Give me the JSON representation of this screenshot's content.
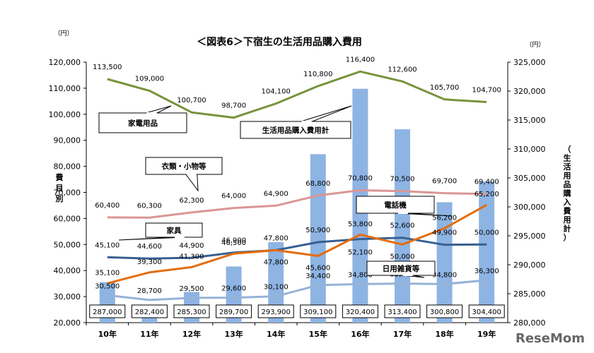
{
  "chart_data": {
    "type": "bar+line",
    "title": "＜図表6＞下宿生の生活用品購入費用",
    "left_unit": "（円）",
    "right_unit": "（円）",
    "left_axis_label": "費目別",
    "right_axis_label": "（生活用品購入費用計）",
    "left_ylim": [
      20000,
      120000
    ],
    "right_ylim": [
      280000,
      325000
    ],
    "left_ticks": [
      "20,000",
      "30,000",
      "40,000",
      "50,000",
      "60,000",
      "70,000",
      "80,000",
      "90,000",
      "100,000",
      "110,000",
      "120,000"
    ],
    "right_ticks": [
      "280,000",
      "285,000",
      "290,000",
      "295,000",
      "300,000",
      "305,000",
      "310,000",
      "315,000",
      "320,000",
      "325,000"
    ],
    "categories": [
      "10年",
      "11年",
      "12年",
      "13年",
      "14年",
      "15年",
      "16年",
      "17年",
      "18年",
      "19年"
    ],
    "bar_series": {
      "values": [
        287000,
        282400,
        285300,
        289700,
        293900,
        309100,
        320400,
        313400,
        300800,
        304400
      ],
      "labels": [
        "287,000",
        "282,400",
        "285,300",
        "289,700",
        "293,900",
        "309,100",
        "320,400",
        "313,400",
        "300,800",
        "304,400"
      ],
      "color": "#8eb4e3",
      "axis": "right"
    },
    "line_series": [
      {
        "key": "kaden",
        "values": [
          113500,
          109000,
          100700,
          98700,
          104100,
          110800,
          116400,
          112600,
          105700,
          104700
        ],
        "labels": [
          "113,500",
          "109,000",
          "100,700",
          "98,700",
          "104,100",
          "110,800",
          "116,400",
          "112,600",
          "105,700",
          "104,700"
        ],
        "color": "#77933c"
      },
      {
        "key": "irui",
        "values": [
          60400,
          60300,
          62300,
          64000,
          64900,
          68800,
          70800,
          70500,
          69700,
          69400
        ],
        "labels": [
          "60,400",
          "60,300",
          "62,300",
          "64,000",
          "64,900",
          "68,800",
          "70,800",
          "70,500",
          "69,700",
          "69,400"
        ],
        "color": "#d99694"
      },
      {
        "key": "kagu",
        "values": [
          45100,
          44600,
          44900,
          46900,
          47800,
          50900,
          52100,
          52600,
          49900,
          50000
        ],
        "labels": [
          "45,100",
          "44,600",
          "44,900",
          "46,900",
          "47,800",
          "50,900",
          "52,100",
          "52,600",
          "49,900",
          "50,000"
        ],
        "color": "#376092"
      },
      {
        "key": "denwa",
        "values": [
          35100,
          39300,
          41300,
          46500,
          47800,
          45600,
          53800,
          50000,
          56200,
          65200
        ],
        "labels": [
          "35,100",
          "39,300",
          "41,300",
          "46,500",
          "47,800",
          "45,600",
          "53,800",
          "50,000",
          "56,200",
          "65,200"
        ],
        "color": "#e46c0a"
      },
      {
        "key": "nichiyo",
        "values": [
          30500,
          28700,
          29500,
          29600,
          30100,
          34400,
          34800,
          35000,
          34800,
          36300
        ],
        "labels": [
          "30,500",
          "28,700",
          "29,500",
          "29,600",
          "30,100",
          "34,400",
          "34,800",
          "35,000",
          "34,800",
          "36,300"
        ],
        "color": "#95b3d7"
      }
    ],
    "callouts": [
      {
        "key": "kaden",
        "text": "家電用品"
      },
      {
        "key": "total",
        "text": "生活用品購入費用計"
      },
      {
        "key": "irui",
        "text": "衣類・小物等"
      },
      {
        "key": "kagu",
        "text": "家具"
      },
      {
        "key": "denwa",
        "text": "電話機"
      },
      {
        "key": "nichiyo",
        "text": "日用雑貨等"
      }
    ],
    "grid": false,
    "legend": "none"
  },
  "watermark": "ReseMom"
}
